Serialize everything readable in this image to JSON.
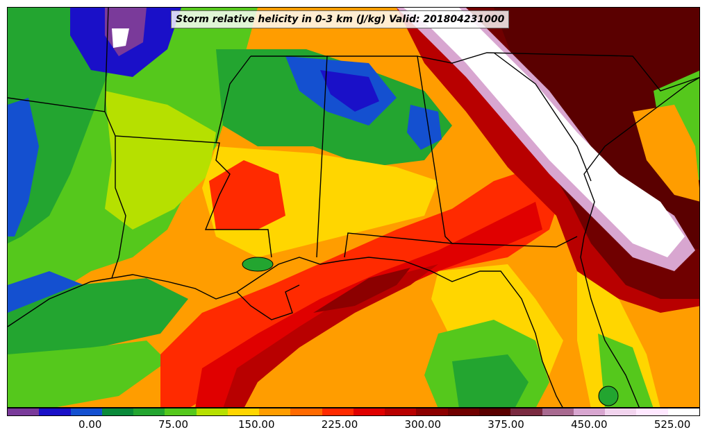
{
  "title": "Storm relative helicity in 0-3 km (J/kg) Valid: 201804231000",
  "colorbar": {
    "colors": [
      "#7a3a9a",
      "#1a10c8",
      "#1450d0",
      "#0a8a3a",
      "#23a530",
      "#55c81c",
      "#b6e000",
      "#ffd600",
      "#ff9d00",
      "#ff6a00",
      "#ff2a00",
      "#e00000",
      "#b80000",
      "#8c0000",
      "#700000",
      "#5a0000",
      "#7a2a40",
      "#a86a90",
      "#d8a6d0",
      "#f2d4ee",
      "#ffe8ff",
      "#ffffff"
    ],
    "ticks": [
      {
        "label": "0.00",
        "value": 0
      },
      {
        "label": "75.00",
        "value": 75
      },
      {
        "label": "150.00",
        "value": 150
      },
      {
        "label": "225.00",
        "value": 225
      },
      {
        "label": "300.00",
        "value": 300
      },
      {
        "label": "375.00",
        "value": 375
      },
      {
        "label": "450.00",
        "value": 450
      },
      {
        "label": "525.00",
        "value": 525
      }
    ],
    "range": [
      -75,
      550
    ]
  },
  "field_colors": {
    "deep_blue": "#1a10c8",
    "blue": "#1450d0",
    "purple": "#7a3a9a",
    "dark_green": "#0a8a3a",
    "green": "#23a530",
    "light_green": "#55c81c",
    "yellow_green": "#b6e000",
    "yellow": "#ffd600",
    "orange": "#ff9d00",
    "dark_orange": "#ff6a00",
    "red": "#ff2a00",
    "crimson": "#e00000",
    "dark_red": "#b80000",
    "maroon": "#8c0000",
    "deep_maroon": "#5a0000",
    "pink": "#d8a6d0",
    "white": "#ffffff"
  }
}
